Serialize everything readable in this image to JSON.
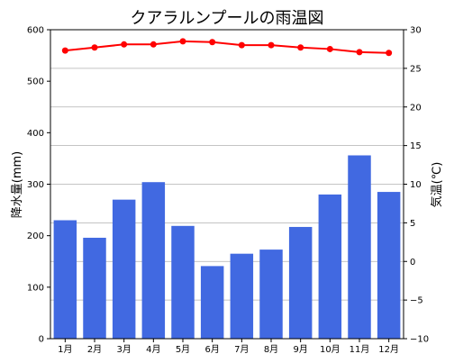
{
  "chart_data": {
    "type": "bar",
    "title": "クアラルンプールの雨温図",
    "categories": [
      "1月",
      "2月",
      "3月",
      "4月",
      "5月",
      "6月",
      "7月",
      "8月",
      "9月",
      "10月",
      "11月",
      "12月"
    ],
    "series": [
      {
        "axis": "left",
        "type": "bar",
        "color": "#4169e1",
        "values": [
          230,
          196,
          270,
          304,
          219,
          141,
          165,
          173,
          217,
          280,
          356,
          285
        ]
      },
      {
        "axis": "right",
        "type": "line",
        "color": "#ff0000",
        "values": [
          27.3,
          27.7,
          28.1,
          28.1,
          28.5,
          28.4,
          28.0,
          28.0,
          27.7,
          27.5,
          27.1,
          27.0
        ]
      }
    ],
    "ylabel_left": "降水量(mm)",
    "ylabel_right": "気温(℃)",
    "ylim_left": [
      0,
      600
    ],
    "ylim_right": [
      -10,
      30
    ],
    "yticks_left": [
      "0",
      "100",
      "200",
      "300",
      "400",
      "500",
      "600"
    ],
    "yticks_right": [
      "−10",
      "−5",
      "0",
      "5",
      "10",
      "15",
      "20",
      "25",
      "30"
    ],
    "grid": "horizontal (right axis)",
    "legend": "none"
  }
}
